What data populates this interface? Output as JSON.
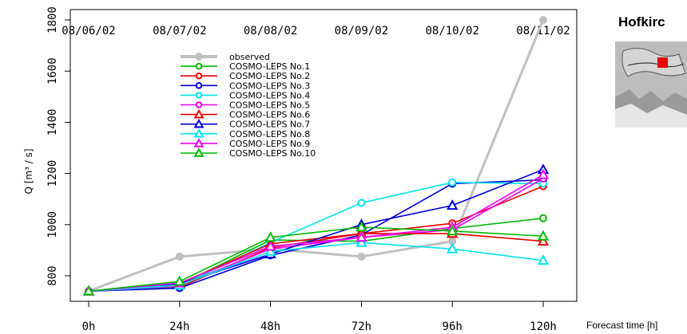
{
  "station_title": "Hofkirc",
  "x_axis_title": "Forecast time [h]",
  "chart_data": {
    "type": "line",
    "title": "",
    "xlabel": "Forecast time [h]",
    "ylabel": "Q [m³ / s]",
    "x": [
      0,
      24,
      48,
      72,
      96,
      120
    ],
    "x_tick_labels": [
      "0h",
      "24h",
      "48h",
      "72h",
      "96h",
      "120h"
    ],
    "top_tick_labels": [
      "08/06/02",
      "08/07/02",
      "08/08/02",
      "08/09/02",
      "08/10/02",
      "08/11/02"
    ],
    "ylim": [
      730,
      1800
    ],
    "y_ticks": [
      800,
      1000,
      1200,
      1400,
      1600,
      1800
    ],
    "legend_position": "top-center",
    "series": [
      {
        "name": "observed",
        "color": "#c0c0c0",
        "marker": "circle",
        "values": [
          740,
          875,
          905,
          875,
          935,
          1800
        ]
      },
      {
        "name": "COSMO-LEPS No.1",
        "color": "#00bb00",
        "marker": "circle",
        "values": [
          740,
          765,
          940,
          935,
          985,
          1025
        ]
      },
      {
        "name": "COSMO-LEPS No.2",
        "color": "#ee0000",
        "marker": "circle",
        "values": [
          740,
          755,
          910,
          965,
          1005,
          1150
        ]
      },
      {
        "name": "COSMO-LEPS No.3",
        "color": "#0000dd",
        "marker": "circle",
        "values": [
          740,
          752,
          880,
          960,
          1160,
          1175
        ]
      },
      {
        "name": "COSMO-LEPS No.4",
        "color": "#00e5ee",
        "marker": "circle",
        "values": [
          740,
          760,
          930,
          1085,
          1165,
          1160
        ]
      },
      {
        "name": "COSMO-LEPS No.5",
        "color": "#ee00ee",
        "marker": "circle",
        "values": [
          740,
          762,
          905,
          950,
          980,
          1180
        ]
      },
      {
        "name": "COSMO-LEPS No.6",
        "color": "#ee0000",
        "marker": "triangle",
        "values": [
          740,
          770,
          925,
          965,
          965,
          935
        ]
      },
      {
        "name": "COSMO-LEPS No.7",
        "color": "#0000dd",
        "marker": "triangle",
        "values": [
          740,
          768,
          885,
          1000,
          1075,
          1215
        ]
      },
      {
        "name": "COSMO-LEPS No.8",
        "color": "#00e5ee",
        "marker": "triangle",
        "values": [
          740,
          764,
          895,
          930,
          905,
          860
        ]
      },
      {
        "name": "COSMO-LEPS No.9",
        "color": "#ee00ee",
        "marker": "triangle",
        "values": [
          740,
          772,
          915,
          950,
          990,
          1195
        ]
      },
      {
        "name": "COSMO-LEPS No.10",
        "color": "#00bb00",
        "marker": "triangle",
        "values": [
          740,
          778,
          950,
          990,
          975,
          955
        ]
      }
    ]
  }
}
